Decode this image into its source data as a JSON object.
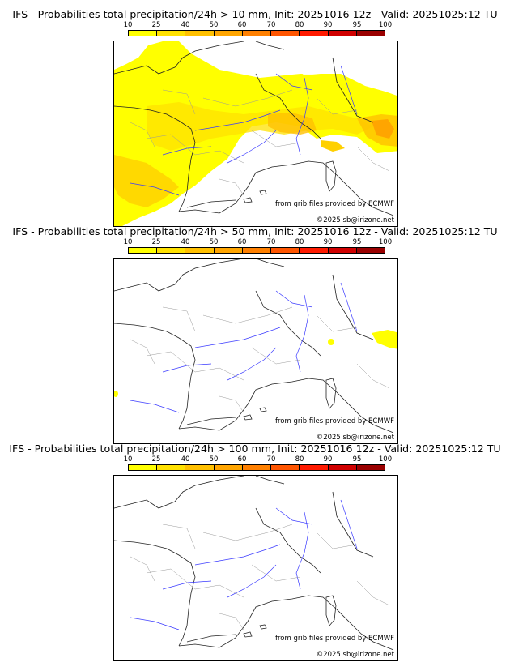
{
  "legend": {
    "ticks": [
      "10",
      "25",
      "40",
      "50",
      "60",
      "70",
      "80",
      "90",
      "95",
      "100"
    ],
    "colors": [
      "#ffff00",
      "#ffe100",
      "#ffc000",
      "#ffa500",
      "#ff8000",
      "#ff5500",
      "#ff1a00",
      "#d00000",
      "#9a0000",
      "#5a0000"
    ]
  },
  "panels": [
    {
      "title": "IFS - Probabilities total precipitation/24h > 10 mm, Init: 20251016 12z - Valid: 20251025:12 TU",
      "source": "from grib files provided by ECMWF",
      "copyright": "©2025 sb@irizone.net"
    },
    {
      "title": "IFS - Probabilities total precipitation/24h > 50 mm, Init: 20251016 12z - Valid: 20251025:12 TU",
      "source": "from grib files provided by ECMWF",
      "copyright": "©2025 sb@irizone.net"
    },
    {
      "title": "IFS - Probabilities total precipitation/24h > 100 mm, Init: 20251016 12z - Valid: 20251025:12 TU",
      "source": "from grib files provided by ECMWF",
      "copyright": "©2025 sb@irizone.net"
    }
  ]
}
